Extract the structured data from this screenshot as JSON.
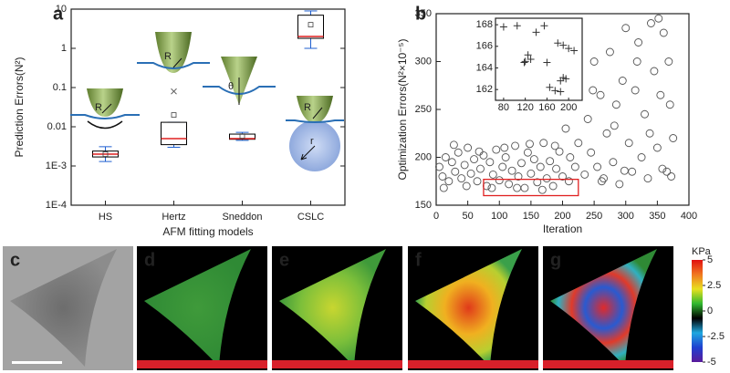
{
  "chart_data": [
    {
      "type": "box",
      "label": "a",
      "ylabel": "Prediction Errors(N²)",
      "xlabel": "AFM fitting models",
      "categories": [
        "HS",
        "Hertz",
        "Sneddon",
        "CSLC"
      ],
      "log_scale": true,
      "ylim": [
        0.0001,
        10
      ],
      "yticks": [
        {
          "value": 0.0001,
          "label": "1E-4"
        },
        {
          "value": 0.001,
          "label": "1E-3"
        },
        0.01,
        0.1,
        1,
        10
      ],
      "box_color": "#000000",
      "median_color": "#e02020",
      "whisker_color": "#1f5fd0",
      "boxes": [
        {
          "whisker_low": 0.0013,
          "q1": 0.0017,
          "median": 0.002,
          "q3": 0.0024,
          "whisker_high": 0.0031,
          "mean": 0.002,
          "outliers": []
        },
        {
          "whisker_low": 0.003,
          "q1": 0.0035,
          "median": 0.005,
          "q3": 0.013,
          "whisker_high": 0.013,
          "mean": 0.02,
          "outliers": [
            0.08
          ]
        },
        {
          "whisker_low": 0.0045,
          "q1": 0.0048,
          "median": 0.005,
          "q3": 0.0065,
          "whisker_high": 0.0072,
          "mean": 0.0058,
          "outliers": []
        },
        {
          "whisker_low": 1,
          "q1": 1.8,
          "median": 2,
          "q3": 7,
          "whisker_high": 9,
          "mean": 4,
          "outliers": []
        }
      ],
      "annotations": [
        "R",
        "R",
        "θ",
        "R",
        "r"
      ]
    },
    {
      "type": "scatter",
      "label": "b",
      "ylabel": "Optimization Errors(N²×10⁻⁵)",
      "xlabel": "Iteration",
      "xlim": [
        0,
        400
      ],
      "xticks": [
        0,
        50,
        100,
        150,
        200,
        250,
        300,
        350,
        400
      ],
      "ylim": [
        150,
        350
      ],
      "yticks": [
        150,
        200,
        250,
        300,
        350
      ],
      "color": "#555555",
      "x": [
        5,
        10,
        15,
        20,
        25,
        30,
        35,
        40,
        45,
        50,
        55,
        60,
        65,
        70,
        75,
        80,
        85,
        90,
        95,
        100,
        105,
        110,
        115,
        120,
        125,
        130,
        135,
        140,
        145,
        150,
        155,
        160,
        165,
        170,
        175,
        180,
        185,
        190,
        195,
        200,
        205,
        210,
        215,
        220,
        225,
        230,
        235,
        240,
        245,
        250,
        255,
        260,
        265,
        270,
        275,
        280,
        285,
        290,
        295,
        300,
        305,
        310,
        315,
        320,
        325,
        330,
        335,
        340,
        345,
        350,
        355,
        360,
        365,
        370,
        375,
        12,
        28,
        48,
        68,
        88,
        108,
        128,
        148,
        168,
        188,
        212,
        228,
        248,
        262,
        282,
        298,
        318,
        338,
        352,
        358,
        368,
        372
      ],
      "y": [
        190,
        180,
        200,
        175,
        195,
        185,
        205,
        178,
        192,
        210,
        183,
        198,
        175,
        188,
        202,
        170,
        195,
        182,
        208,
        176,
        190,
        200,
        172,
        186,
        212,
        180,
        194,
        168,
        205,
        183,
        198,
        174,
        190,
        215,
        178,
        196,
        170,
        188,
        206,
        180,
        230,
        175,
        250,
        190,
        215,
        285,
        182,
        240,
        205,
        300,
        190,
        265,
        178,
        225,
        310,
        195,
        255,
        172,
        280,
        335,
        215,
        185,
        270,
        320,
        200,
        245,
        178,
        340,
        290,
        210,
        265,
        330,
        185,
        255,
        220,
        168,
        213,
        170,
        206,
        168,
        210,
        168,
        214,
        166,
        212,
        200,
        268,
        270,
        175,
        233,
        186,
        300,
        225,
        345,
        188,
        300,
        180
      ],
      "highlight": {
        "x": [
          75,
          225
        ],
        "y": [
          160,
          177
        ],
        "color": "#e02020"
      }
    },
    {
      "type": "scatter_inset",
      "xlim": [
        65,
        225
      ],
      "xticks": [
        80,
        120,
        160,
        200
      ],
      "ylim": [
        161,
        168.6
      ],
      "yticks": [
        162,
        164,
        166,
        168
      ],
      "color": "#333333",
      "x": [
        80,
        105,
        118,
        120,
        125,
        130,
        140,
        155,
        160,
        165,
        175,
        180,
        185,
        190,
        185,
        195,
        200,
        210,
        190
      ],
      "y": [
        167.8,
        167.9,
        164.5,
        164.6,
        165.2,
        164.8,
        167.3,
        167.9,
        164.5,
        162.2,
        161.9,
        166.3,
        162.8,
        166.1,
        161.8,
        163,
        165.8,
        165.6,
        163.1
      ]
    },
    {
      "type": "colorbar",
      "title": "KPa",
      "ylim": [
        -5,
        5
      ],
      "yticks": [
        5,
        2.5,
        0,
        -2.5,
        -5
      ],
      "colors": [
        "#5a1a9a",
        "#1f3fd0",
        "#1fa8e0",
        "#000000",
        "#2fb82f",
        "#e8e020",
        "#f07820",
        "#e01010"
      ]
    }
  ],
  "image_panels": {
    "labels": [
      "c",
      "d",
      "e",
      "f",
      "g"
    ]
  }
}
